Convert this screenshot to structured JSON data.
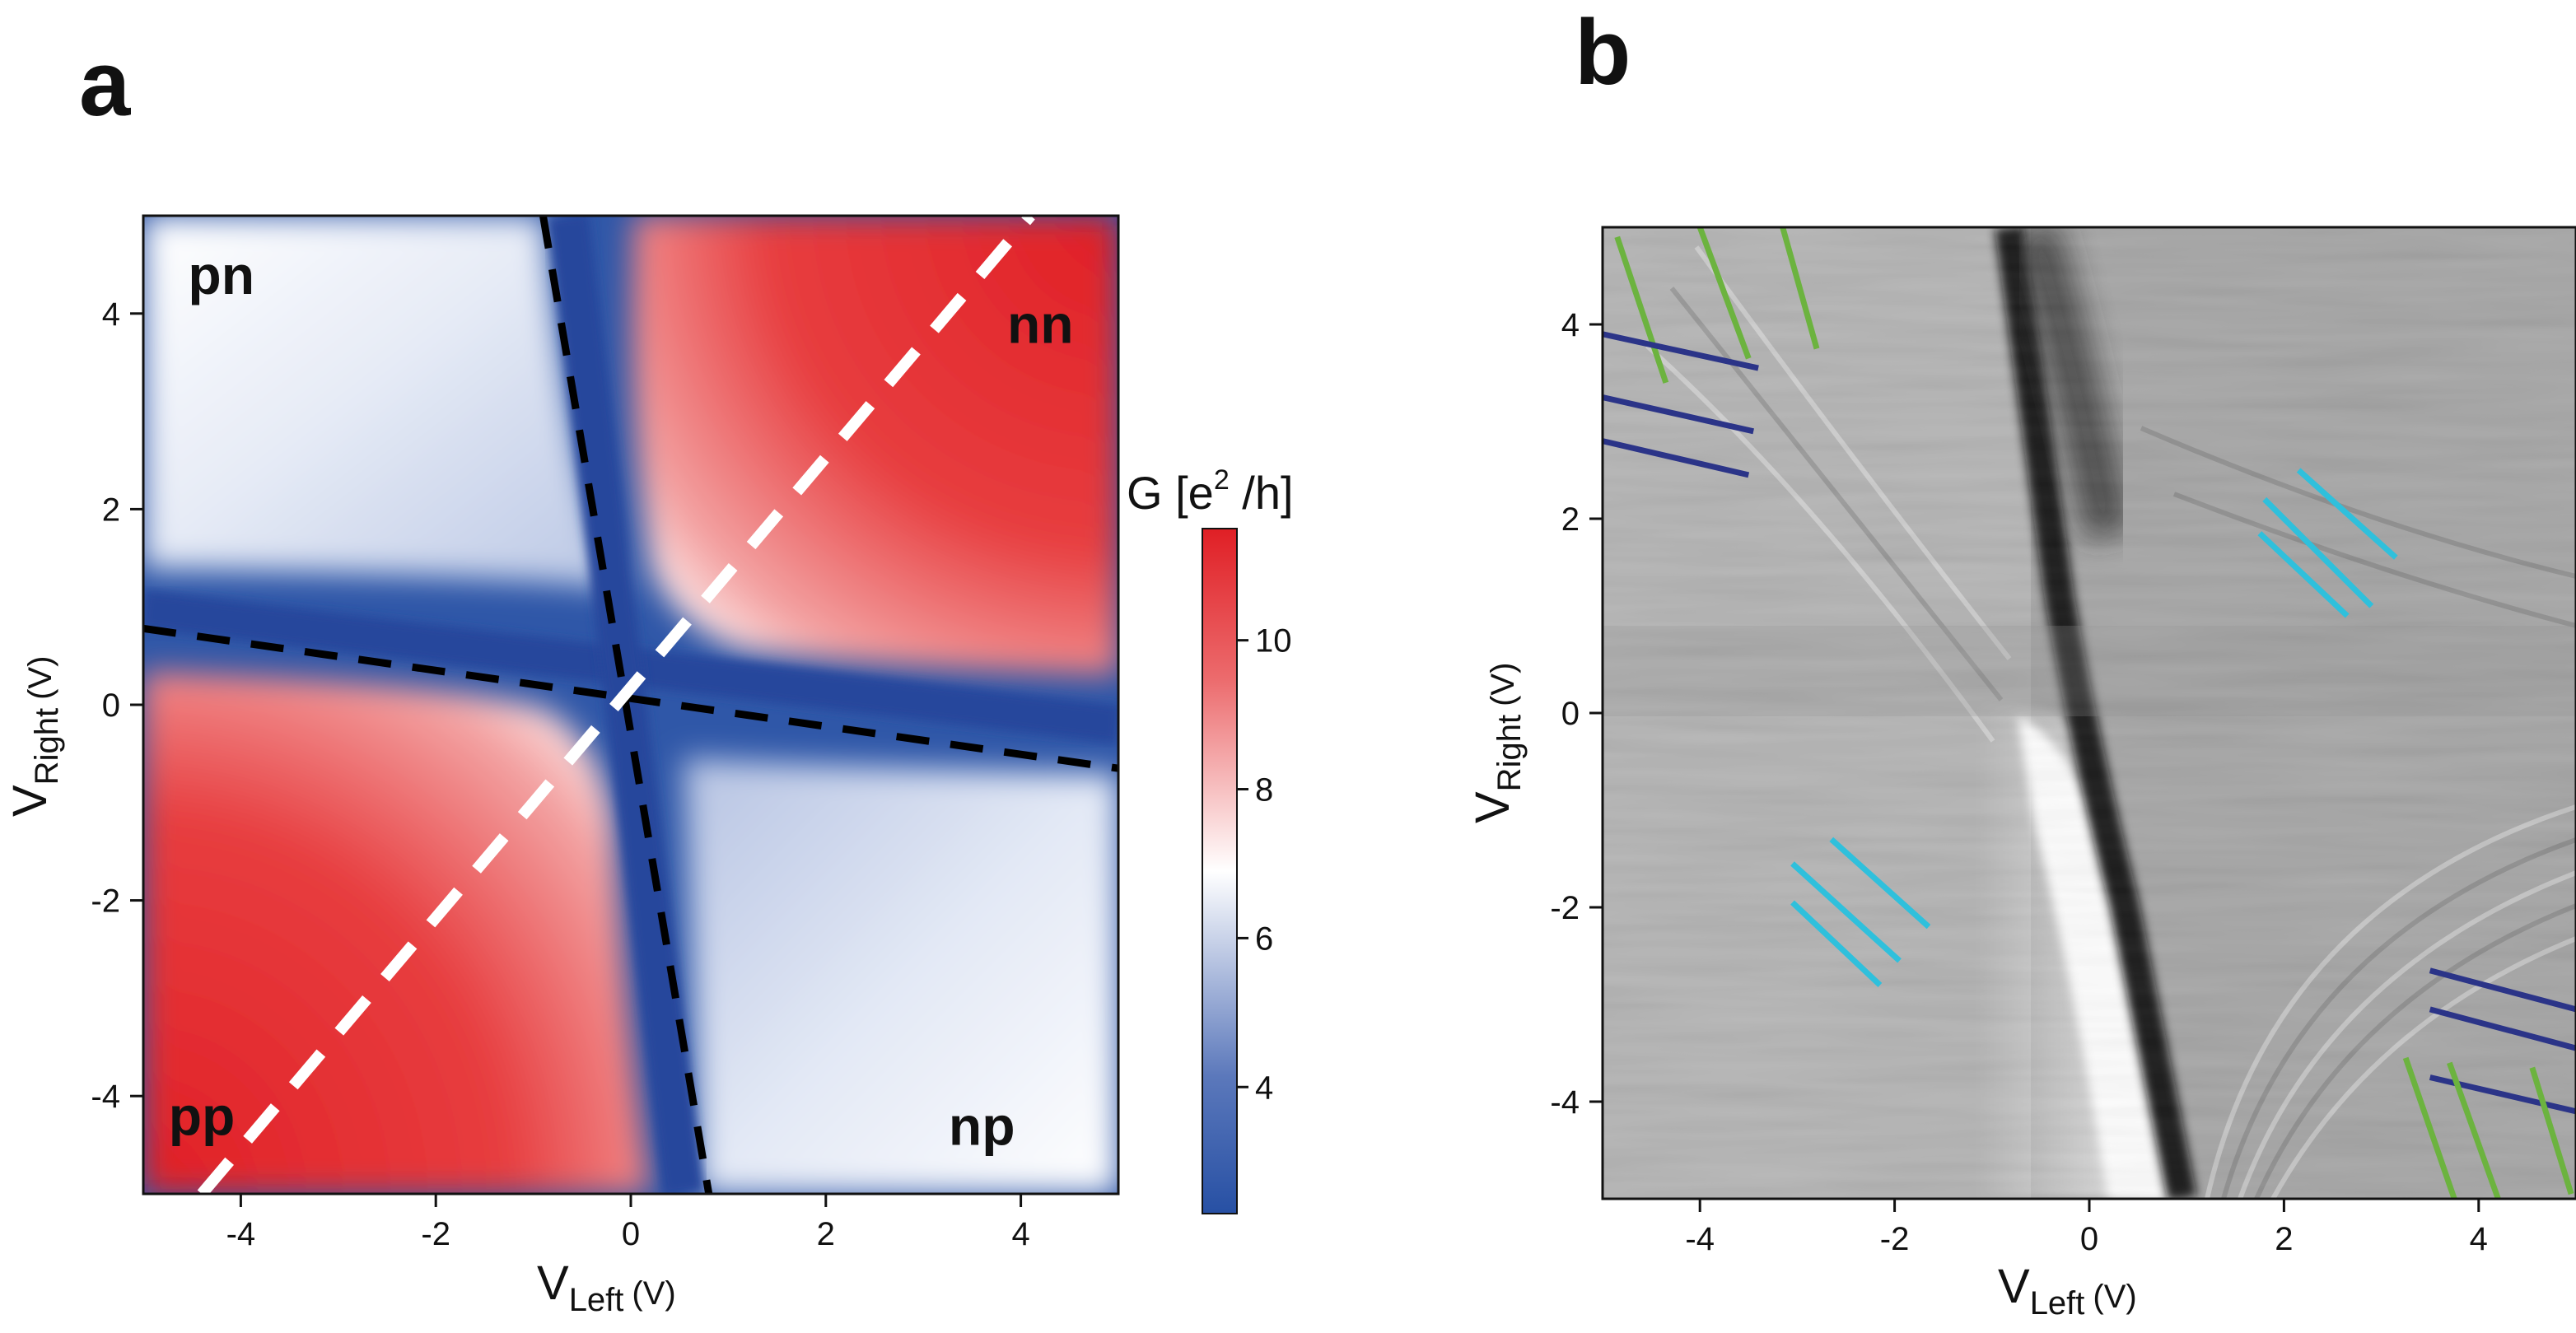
{
  "chart_data": [
    {
      "panel": "a",
      "type": "heatmap",
      "title": "",
      "xlabel": {
        "main": "V",
        "sub": "Left",
        "unit": "(V)"
      },
      "ylabel": {
        "main": "V",
        "sub": "Right",
        "unit": "(V)"
      },
      "xlim": [
        -5,
        5
      ],
      "ylim": [
        -5,
        5
      ],
      "xticks": [
        -4,
        -2,
        0,
        2,
        4
      ],
      "yticks": [
        -4,
        -2,
        0,
        2,
        4
      ],
      "tick_labels": [
        "-4",
        "-2",
        "0",
        "2",
        "4"
      ],
      "colorbar": {
        "title": {
          "main": "G [e",
          "sup": "2",
          "tail": " /h]"
        },
        "range": [
          2.3,
          11.5
        ],
        "ticks": [
          4,
          6,
          8,
          10
        ],
        "tick_labels": [
          "4",
          "6",
          "8",
          "10"
        ],
        "colormap": [
          "#2750a4",
          "#ffffff",
          "#e01f25"
        ]
      },
      "region_labels": [
        {
          "text": "pn",
          "x": -4.2,
          "y": 4.2
        },
        {
          "text": "nn",
          "x": 4.2,
          "y": 3.7
        },
        {
          "text": "pp",
          "x": -4.4,
          "y": -4.4
        },
        {
          "text": "np",
          "x": 3.6,
          "y": -4.5
        }
      ],
      "dashed_lines": [
        {
          "name": "charge-neutrality-right",
          "color": "#000000",
          "points": [
            [
              -5,
              0.78
            ],
            [
              5,
              -0.65
            ]
          ]
        },
        {
          "name": "charge-neutrality-left",
          "color": "#000000",
          "points": [
            [
              -0.9,
              5
            ],
            [
              0.8,
              -5
            ]
          ]
        },
        {
          "name": "symmetric-diagonal",
          "color": "#ffffff",
          "points": [
            [
              -4.4,
              -5
            ],
            [
              4.1,
              5
            ]
          ]
        }
      ]
    },
    {
      "panel": "b",
      "type": "heatmap",
      "title": "",
      "xlabel": {
        "main": "V",
        "sub": "Left",
        "unit": "(V)"
      },
      "ylabel": {
        "main": "V",
        "sub": "Right",
        "unit": "(V)"
      },
      "xlim": [
        -5,
        5
      ],
      "ylim": [
        -5,
        5
      ],
      "xticks": [
        -4,
        -2,
        0,
        2,
        4
      ],
      "yticks": [
        -4,
        -2,
        0,
        2,
        4
      ],
      "tick_labels": [
        "-4",
        "-2",
        "0",
        "2",
        "4"
      ],
      "colormap": "grayscale (numerical derivative of G)",
      "marker_lines": [
        {
          "color": "#6cb33f",
          "group": "green",
          "points": [
            [
              -4.85,
              4.9
            ],
            [
              -4.35,
              3.4
            ]
          ]
        },
        {
          "color": "#6cb33f",
          "group": "green",
          "points": [
            [
              -4.0,
              5.0
            ],
            [
              -3.5,
              3.65
            ]
          ]
        },
        {
          "color": "#6cb33f",
          "group": "green",
          "points": [
            [
              -3.15,
              5.0
            ],
            [
              -2.8,
              3.75
            ]
          ]
        },
        {
          "color": "#2b3488",
          "group": "navy",
          "points": [
            [
              -5.0,
              3.9
            ],
            [
              -3.4,
              3.55
            ]
          ]
        },
        {
          "color": "#2b3488",
          "group": "navy",
          "points": [
            [
              -5.0,
              3.25
            ],
            [
              -3.45,
              2.9
            ]
          ]
        },
        {
          "color": "#2b3488",
          "group": "navy",
          "points": [
            [
              -5.0,
              2.8
            ],
            [
              -3.5,
              2.45
            ]
          ]
        },
        {
          "color": "#2fc0dc",
          "group": "cyan",
          "points": [
            [
              1.8,
              2.2
            ],
            [
              2.9,
              1.1
            ]
          ]
        },
        {
          "color": "#2fc0dc",
          "group": "cyan",
          "points": [
            [
              1.75,
              1.85
            ],
            [
              2.65,
              1.0
            ]
          ]
        },
        {
          "color": "#2fc0dc",
          "group": "cyan",
          "points": [
            [
              2.15,
              2.5
            ],
            [
              3.15,
              1.6
            ]
          ]
        },
        {
          "color": "#2fc0dc",
          "group": "cyan",
          "points": [
            [
              -2.65,
              -1.3
            ],
            [
              -1.65,
              -2.2
            ]
          ]
        },
        {
          "color": "#2fc0dc",
          "group": "cyan",
          "points": [
            [
              -3.05,
              -1.55
            ],
            [
              -1.95,
              -2.55
            ]
          ]
        },
        {
          "color": "#2fc0dc",
          "group": "cyan",
          "points": [
            [
              -3.05,
              -1.95
            ],
            [
              -2.15,
              -2.8
            ]
          ]
        },
        {
          "color": "#2b3488",
          "group": "navy",
          "points": [
            [
              3.5,
              -2.65
            ],
            [
              5.0,
              -3.05
            ]
          ]
        },
        {
          "color": "#2b3488",
          "group": "navy",
          "points": [
            [
              3.5,
              -3.05
            ],
            [
              5.0,
              -3.45
            ]
          ]
        },
        {
          "color": "#2b3488",
          "group": "navy",
          "points": [
            [
              3.5,
              -3.75
            ],
            [
              5.0,
              -4.1
            ]
          ]
        },
        {
          "color": "#6cb33f",
          "group": "green",
          "points": [
            [
              3.25,
              -3.55
            ],
            [
              3.75,
              -5.0
            ]
          ]
        },
        {
          "color": "#6cb33f",
          "group": "green",
          "points": [
            [
              3.7,
              -3.6
            ],
            [
              4.2,
              -5.0
            ]
          ]
        },
        {
          "color": "#6cb33f",
          "group": "green",
          "points": [
            [
              4.55,
              -3.65
            ],
            [
              4.95,
              -4.95
            ]
          ]
        }
      ]
    }
  ]
}
